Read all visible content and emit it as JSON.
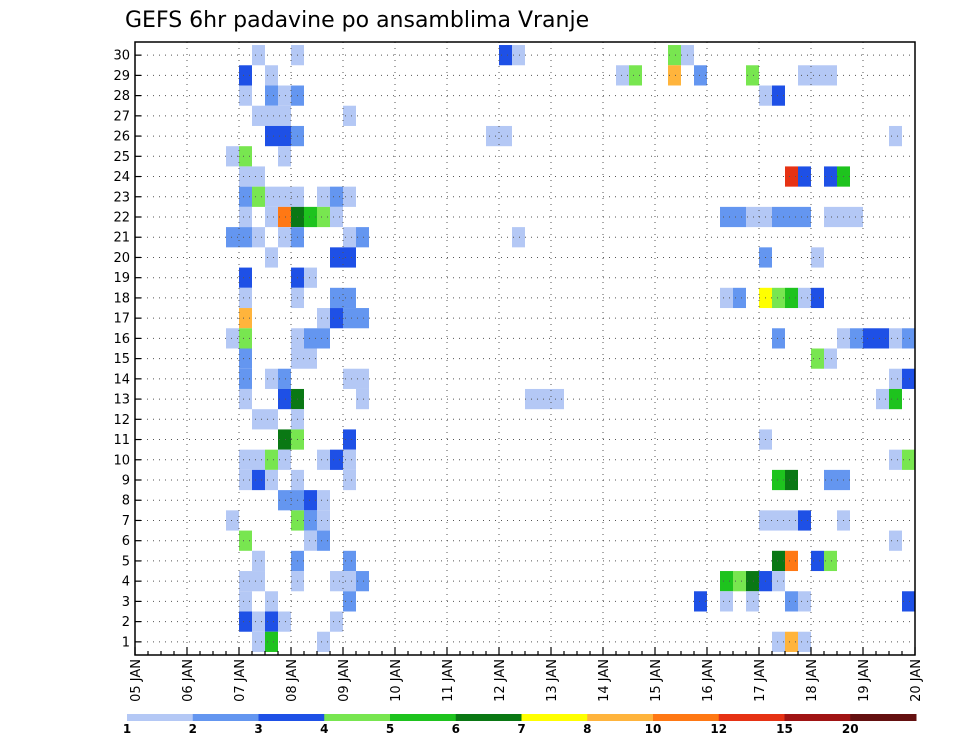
{
  "chart_data": {
    "type": "heatmap",
    "title": "GEFS 6hr padavine po ansamblima Vranje",
    "x_tick_labels": [
      "05 JAN",
      "06 JAN",
      "07 JAN",
      "08 JAN",
      "09 JAN",
      "10 JAN",
      "11 JAN",
      "12 JAN",
      "13 JAN",
      "14 JAN",
      "15 JAN",
      "16 JAN",
      "17 JAN",
      "18 JAN",
      "19 JAN",
      "20 JAN"
    ],
    "y_tick_labels": [
      "1",
      "2",
      "3",
      "4",
      "5",
      "6",
      "7",
      "8",
      "9",
      "10",
      "11",
      "12",
      "13",
      "14",
      "15",
      "16",
      "17",
      "18",
      "19",
      "20",
      "21",
      "22",
      "23",
      "24",
      "25",
      "26",
      "27",
      "28",
      "29",
      "30"
    ],
    "xlim_days": [
      5,
      20
    ],
    "ylim_members": [
      0,
      30
    ],
    "grid": true,
    "colorbar": {
      "labels": [
        "1",
        "2",
        "3",
        "4",
        "5",
        "6",
        "7",
        "8",
        "10",
        "12",
        "15",
        "20"
      ],
      "colors": [
        "#b4c8f5",
        "#6496f0",
        "#1e50e6",
        "#78e650",
        "#1ec31e",
        "#0a7814",
        "#ffff00",
        "#ffb43c",
        "#ff7814",
        "#e63214",
        "#a01414",
        "#641010"
      ]
    },
    "cells": [
      {
        "m": 30,
        "d": 7.25,
        "len": 0.25,
        "c": 0
      },
      {
        "m": 30,
        "d": 8.0,
        "len": 0.25,
        "c": 0
      },
      {
        "m": 30,
        "d": 12.0,
        "len": 0.25,
        "c": 2
      },
      {
        "m": 30,
        "d": 12.25,
        "len": 0.25,
        "c": 0
      },
      {
        "m": 30,
        "d": 15.25,
        "len": 0.25,
        "c": 3
      },
      {
        "m": 30,
        "d": 15.5,
        "len": 0.25,
        "c": 0
      },
      {
        "m": 29,
        "d": 7.0,
        "len": 0.25,
        "c": 2
      },
      {
        "m": 29,
        "d": 7.5,
        "len": 0.25,
        "c": 0
      },
      {
        "m": 29,
        "d": 14.25,
        "len": 0.25,
        "c": 0
      },
      {
        "m": 29,
        "d": 14.5,
        "len": 0.25,
        "c": 3
      },
      {
        "m": 29,
        "d": 15.25,
        "len": 0.25,
        "c": 7
      },
      {
        "m": 29,
        "d": 15.75,
        "len": 0.25,
        "c": 1
      },
      {
        "m": 29,
        "d": 16.75,
        "len": 0.25,
        "c": 3
      },
      {
        "m": 29,
        "d": 17.75,
        "len": 0.75,
        "c": 0
      },
      {
        "m": 28,
        "d": 7.0,
        "len": 0.25,
        "c": 0
      },
      {
        "m": 28,
        "d": 7.5,
        "len": 0.25,
        "c": 1
      },
      {
        "m": 28,
        "d": 7.75,
        "len": 0.25,
        "c": 0
      },
      {
        "m": 28,
        "d": 8.0,
        "len": 0.25,
        "c": 1
      },
      {
        "m": 28,
        "d": 17.0,
        "len": 0.25,
        "c": 0
      },
      {
        "m": 28,
        "d": 17.25,
        "len": 0.25,
        "c": 2
      },
      {
        "m": 27,
        "d": 7.25,
        "len": 0.75,
        "c": 0
      },
      {
        "m": 27,
        "d": 9.0,
        "len": 0.25,
        "c": 0
      },
      {
        "m": 26,
        "d": 7.5,
        "len": 0.5,
        "c": 2
      },
      {
        "m": 26,
        "d": 8.0,
        "len": 0.25,
        "c": 1
      },
      {
        "m": 26,
        "d": 11.75,
        "len": 0.5,
        "c": 0
      },
      {
        "m": 26,
        "d": 19.5,
        "len": 0.25,
        "c": 0
      },
      {
        "m": 25,
        "d": 6.75,
        "len": 0.25,
        "c": 0
      },
      {
        "m": 25,
        "d": 7.0,
        "len": 0.25,
        "c": 3
      },
      {
        "m": 25,
        "d": 7.75,
        "len": 0.25,
        "c": 0
      },
      {
        "m": 24,
        "d": 7.0,
        "len": 0.5,
        "c": 0
      },
      {
        "m": 24,
        "d": 17.5,
        "len": 0.25,
        "c": 9
      },
      {
        "m": 24,
        "d": 17.75,
        "len": 0.25,
        "c": 2
      },
      {
        "m": 24,
        "d": 18.25,
        "len": 0.25,
        "c": 2
      },
      {
        "m": 24,
        "d": 18.5,
        "len": 0.25,
        "c": 4
      },
      {
        "m": 23,
        "d": 7.0,
        "len": 0.25,
        "c": 1
      },
      {
        "m": 23,
        "d": 7.25,
        "len": 0.25,
        "c": 3
      },
      {
        "m": 23,
        "d": 7.5,
        "len": 0.75,
        "c": 0
      },
      {
        "m": 23,
        "d": 8.5,
        "len": 0.25,
        "c": 0
      },
      {
        "m": 23,
        "d": 8.75,
        "len": 0.25,
        "c": 1
      },
      {
        "m": 23,
        "d": 9.0,
        "len": 0.25,
        "c": 0
      },
      {
        "m": 22,
        "d": 7.0,
        "len": 0.25,
        "c": 0
      },
      {
        "m": 22,
        "d": 7.5,
        "len": 0.25,
        "c": 0
      },
      {
        "m": 22,
        "d": 7.75,
        "len": 0.25,
        "c": 8
      },
      {
        "m": 22,
        "d": 8.0,
        "len": 0.25,
        "c": 5
      },
      {
        "m": 22,
        "d": 8.25,
        "len": 0.25,
        "c": 4
      },
      {
        "m": 22,
        "d": 8.5,
        "len": 0.25,
        "c": 3
      },
      {
        "m": 22,
        "d": 8.75,
        "len": 0.25,
        "c": 0
      },
      {
        "m": 22,
        "d": 16.25,
        "len": 0.5,
        "c": 1
      },
      {
        "m": 22,
        "d": 16.75,
        "len": 0.5,
        "c": 0
      },
      {
        "m": 22,
        "d": 17.25,
        "len": 0.75,
        "c": 1
      },
      {
        "m": 22,
        "d": 18.25,
        "len": 0.75,
        "c": 0
      },
      {
        "m": 21,
        "d": 6.75,
        "len": 0.5,
        "c": 1
      },
      {
        "m": 21,
        "d": 7.25,
        "len": 0.25,
        "c": 0
      },
      {
        "m": 21,
        "d": 7.75,
        "len": 0.25,
        "c": 0
      },
      {
        "m": 21,
        "d": 8.0,
        "len": 0.25,
        "c": 1
      },
      {
        "m": 21,
        "d": 9.0,
        "len": 0.25,
        "c": 0
      },
      {
        "m": 21,
        "d": 9.25,
        "len": 0.25,
        "c": 1
      },
      {
        "m": 21,
        "d": 12.25,
        "len": 0.25,
        "c": 0
      },
      {
        "m": 20,
        "d": 7.5,
        "len": 0.25,
        "c": 0
      },
      {
        "m": 20,
        "d": 8.75,
        "len": 0.5,
        "c": 2
      },
      {
        "m": 20,
        "d": 17.0,
        "len": 0.25,
        "c": 1
      },
      {
        "m": 20,
        "d": 18.0,
        "len": 0.25,
        "c": 0
      },
      {
        "m": 19,
        "d": 7.0,
        "len": 0.25,
        "c": 2
      },
      {
        "m": 19,
        "d": 8.0,
        "len": 0.25,
        "c": 2
      },
      {
        "m": 19,
        "d": 8.25,
        "len": 0.25,
        "c": 0
      },
      {
        "m": 18,
        "d": 7.0,
        "len": 0.25,
        "c": 0
      },
      {
        "m": 18,
        "d": 8.0,
        "len": 0.25,
        "c": 0
      },
      {
        "m": 18,
        "d": 8.75,
        "len": 0.5,
        "c": 1
      },
      {
        "m": 18,
        "d": 16.25,
        "len": 0.25,
        "c": 0
      },
      {
        "m": 18,
        "d": 16.5,
        "len": 0.25,
        "c": 1
      },
      {
        "m": 18,
        "d": 17.0,
        "len": 0.25,
        "c": 6
      },
      {
        "m": 18,
        "d": 17.25,
        "len": 0.25,
        "c": 3
      },
      {
        "m": 18,
        "d": 17.5,
        "len": 0.25,
        "c": 4
      },
      {
        "m": 18,
        "d": 17.75,
        "len": 0.25,
        "c": 0
      },
      {
        "m": 18,
        "d": 18.0,
        "len": 0.25,
        "c": 2
      },
      {
        "m": 17,
        "d": 7.0,
        "len": 0.25,
        "c": 7
      },
      {
        "m": 17,
        "d": 8.5,
        "len": 0.25,
        "c": 0
      },
      {
        "m": 17,
        "d": 8.75,
        "len": 0.25,
        "c": 2
      },
      {
        "m": 17,
        "d": 9.0,
        "len": 0.5,
        "c": 1
      },
      {
        "m": 16,
        "d": 6.75,
        "len": 0.25,
        "c": 0
      },
      {
        "m": 16,
        "d": 7.0,
        "len": 0.25,
        "c": 3
      },
      {
        "m": 16,
        "d": 8.0,
        "len": 0.25,
        "c": 0
      },
      {
        "m": 16,
        "d": 8.25,
        "len": 0.5,
        "c": 1
      },
      {
        "m": 16,
        "d": 17.25,
        "len": 0.25,
        "c": 1
      },
      {
        "m": 16,
        "d": 18.5,
        "len": 0.25,
        "c": 0
      },
      {
        "m": 16,
        "d": 18.75,
        "len": 0.25,
        "c": 1
      },
      {
        "m": 16,
        "d": 19.0,
        "len": 0.5,
        "c": 2
      },
      {
        "m": 16,
        "d": 19.5,
        "len": 0.25,
        "c": 0
      },
      {
        "m": 16,
        "d": 19.75,
        "len": 0.25,
        "c": 1
      },
      {
        "m": 15,
        "d": 7.0,
        "len": 0.25,
        "c": 1
      },
      {
        "m": 15,
        "d": 8.0,
        "len": 0.5,
        "c": 0
      },
      {
        "m": 15,
        "d": 18.0,
        "len": 0.25,
        "c": 3
      },
      {
        "m": 15,
        "d": 18.25,
        "len": 0.25,
        "c": 0
      },
      {
        "m": 14,
        "d": 7.0,
        "len": 0.25,
        "c": 1
      },
      {
        "m": 14,
        "d": 7.5,
        "len": 0.25,
        "c": 0
      },
      {
        "m": 14,
        "d": 7.75,
        "len": 0.25,
        "c": 1
      },
      {
        "m": 14,
        "d": 9.0,
        "len": 0.5,
        "c": 0
      },
      {
        "m": 14,
        "d": 19.5,
        "len": 0.25,
        "c": 0
      },
      {
        "m": 14,
        "d": 19.75,
        "len": 0.25,
        "c": 2
      },
      {
        "m": 13,
        "d": 7.0,
        "len": 0.25,
        "c": 0
      },
      {
        "m": 13,
        "d": 7.75,
        "len": 0.25,
        "c": 2
      },
      {
        "m": 13,
        "d": 8.0,
        "len": 0.25,
        "c": 5
      },
      {
        "m": 13,
        "d": 9.25,
        "len": 0.25,
        "c": 0
      },
      {
        "m": 13,
        "d": 12.5,
        "len": 0.75,
        "c": 0
      },
      {
        "m": 13,
        "d": 19.25,
        "len": 0.25,
        "c": 0
      },
      {
        "m": 13,
        "d": 19.5,
        "len": 0.25,
        "c": 4
      },
      {
        "m": 12,
        "d": 7.25,
        "len": 0.5,
        "c": 0
      },
      {
        "m": 12,
        "d": 8.0,
        "len": 0.25,
        "c": 0
      },
      {
        "m": 11,
        "d": 7.75,
        "len": 0.25,
        "c": 5
      },
      {
        "m": 11,
        "d": 8.0,
        "len": 0.25,
        "c": 3
      },
      {
        "m": 11,
        "d": 9.0,
        "len": 0.25,
        "c": 2
      },
      {
        "m": 11,
        "d": 17.0,
        "len": 0.25,
        "c": 0
      },
      {
        "m": 10,
        "d": 7.0,
        "len": 0.5,
        "c": 0
      },
      {
        "m": 10,
        "d": 7.5,
        "len": 0.25,
        "c": 3
      },
      {
        "m": 10,
        "d": 7.75,
        "len": 0.25,
        "c": 0
      },
      {
        "m": 10,
        "d": 8.5,
        "len": 0.25,
        "c": 0
      },
      {
        "m": 10,
        "d": 8.75,
        "len": 0.25,
        "c": 2
      },
      {
        "m": 10,
        "d": 9.0,
        "len": 0.25,
        "c": 0
      },
      {
        "m": 10,
        "d": 19.5,
        "len": 0.25,
        "c": 0
      },
      {
        "m": 10,
        "d": 19.75,
        "len": 0.25,
        "c": 3
      },
      {
        "m": 9,
        "d": 7.0,
        "len": 0.25,
        "c": 0
      },
      {
        "m": 9,
        "d": 7.25,
        "len": 0.25,
        "c": 2
      },
      {
        "m": 9,
        "d": 7.5,
        "len": 0.25,
        "c": 0
      },
      {
        "m": 9,
        "d": 8.0,
        "len": 0.25,
        "c": 0
      },
      {
        "m": 9,
        "d": 9.0,
        "len": 0.25,
        "c": 0
      },
      {
        "m": 9,
        "d": 17.25,
        "len": 0.25,
        "c": 4
      },
      {
        "m": 9,
        "d": 17.5,
        "len": 0.25,
        "c": 5
      },
      {
        "m": 9,
        "d": 18.25,
        "len": 0.5,
        "c": 1
      },
      {
        "m": 8,
        "d": 7.75,
        "len": 0.5,
        "c": 1
      },
      {
        "m": 8,
        "d": 8.25,
        "len": 0.25,
        "c": 2
      },
      {
        "m": 8,
        "d": 8.5,
        "len": 0.25,
        "c": 0
      },
      {
        "m": 7,
        "d": 6.75,
        "len": 0.25,
        "c": 0
      },
      {
        "m": 7,
        "d": 8.0,
        "len": 0.25,
        "c": 3
      },
      {
        "m": 7,
        "d": 8.25,
        "len": 0.25,
        "c": 1
      },
      {
        "m": 7,
        "d": 8.5,
        "len": 0.25,
        "c": 0
      },
      {
        "m": 7,
        "d": 17.0,
        "len": 0.75,
        "c": 0
      },
      {
        "m": 7,
        "d": 17.75,
        "len": 0.25,
        "c": 2
      },
      {
        "m": 7,
        "d": 18.5,
        "len": 0.25,
        "c": 0
      },
      {
        "m": 6,
        "d": 7.0,
        "len": 0.25,
        "c": 3
      },
      {
        "m": 6,
        "d": 8.25,
        "len": 0.25,
        "c": 0
      },
      {
        "m": 6,
        "d": 8.5,
        "len": 0.25,
        "c": 1
      },
      {
        "m": 6,
        "d": 19.5,
        "len": 0.25,
        "c": 0
      },
      {
        "m": 5,
        "d": 7.25,
        "len": 0.25,
        "c": 0
      },
      {
        "m": 5,
        "d": 8.0,
        "len": 0.25,
        "c": 1
      },
      {
        "m": 5,
        "d": 9.0,
        "len": 0.25,
        "c": 1
      },
      {
        "m": 5,
        "d": 17.25,
        "len": 0.25,
        "c": 5
      },
      {
        "m": 5,
        "d": 17.5,
        "len": 0.25,
        "c": 8
      },
      {
        "m": 5,
        "d": 18.0,
        "len": 0.25,
        "c": 2
      },
      {
        "m": 5,
        "d": 18.25,
        "len": 0.25,
        "c": 3
      },
      {
        "m": 4,
        "d": 7.0,
        "len": 0.5,
        "c": 0
      },
      {
        "m": 4,
        "d": 8.0,
        "len": 0.25,
        "c": 0
      },
      {
        "m": 4,
        "d": 8.75,
        "len": 0.25,
        "c": 0
      },
      {
        "m": 4,
        "d": 9.0,
        "len": 0.25,
        "c": 0
      },
      {
        "m": 4,
        "d": 9.25,
        "len": 0.25,
        "c": 1
      },
      {
        "m": 4,
        "d": 16.25,
        "len": 0.25,
        "c": 4
      },
      {
        "m": 4,
        "d": 16.5,
        "len": 0.25,
        "c": 3
      },
      {
        "m": 4,
        "d": 16.75,
        "len": 0.25,
        "c": 5
      },
      {
        "m": 4,
        "d": 17.0,
        "len": 0.25,
        "c": 2
      },
      {
        "m": 4,
        "d": 17.25,
        "len": 0.25,
        "c": 0
      },
      {
        "m": 3,
        "d": 7.0,
        "len": 0.25,
        "c": 0
      },
      {
        "m": 3,
        "d": 7.5,
        "len": 0.25,
        "c": 0
      },
      {
        "m": 3,
        "d": 9.0,
        "len": 0.25,
        "c": 1
      },
      {
        "m": 3,
        "d": 15.75,
        "len": 0.25,
        "c": 2
      },
      {
        "m": 3,
        "d": 16.25,
        "len": 0.25,
        "c": 0
      },
      {
        "m": 3,
        "d": 16.75,
        "len": 0.25,
        "c": 0
      },
      {
        "m": 3,
        "d": 17.5,
        "len": 0.25,
        "c": 1
      },
      {
        "m": 3,
        "d": 17.75,
        "len": 0.25,
        "c": 0
      },
      {
        "m": 3,
        "d": 19.75,
        "len": 0.25,
        "c": 2
      },
      {
        "m": 2,
        "d": 7.0,
        "len": 0.25,
        "c": 2
      },
      {
        "m": 2,
        "d": 7.25,
        "len": 0.25,
        "c": 0
      },
      {
        "m": 2,
        "d": 7.5,
        "len": 0.25,
        "c": 2
      },
      {
        "m": 2,
        "d": 7.75,
        "len": 0.25,
        "c": 0
      },
      {
        "m": 2,
        "d": 8.75,
        "len": 0.25,
        "c": 0
      },
      {
        "m": 1,
        "d": 7.25,
        "len": 0.25,
        "c": 0
      },
      {
        "m": 1,
        "d": 7.5,
        "len": 0.25,
        "c": 4
      },
      {
        "m": 1,
        "d": 8.5,
        "len": 0.25,
        "c": 0
      },
      {
        "m": 1,
        "d": 17.25,
        "len": 0.25,
        "c": 0
      },
      {
        "m": 1,
        "d": 17.5,
        "len": 0.25,
        "c": 7
      },
      {
        "m": 1,
        "d": 17.75,
        "len": 0.25,
        "c": 0
      }
    ]
  }
}
